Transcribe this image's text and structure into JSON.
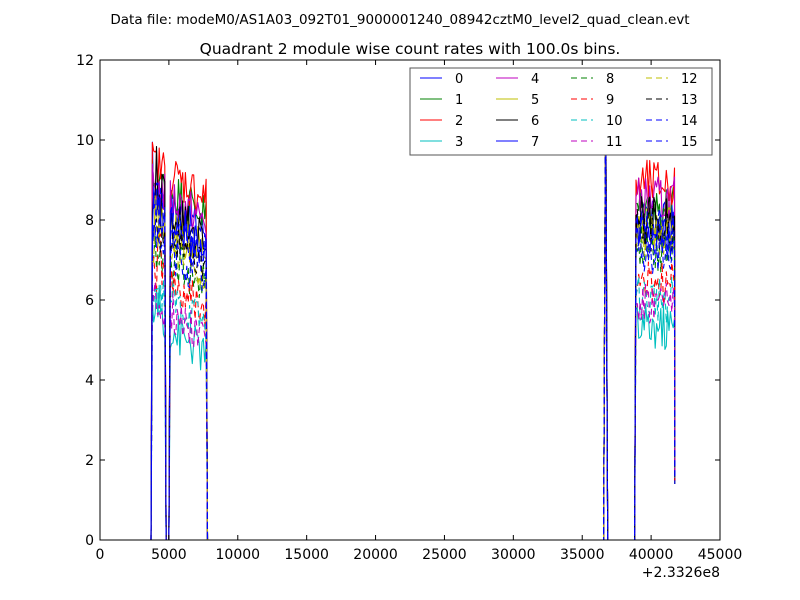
{
  "chart_data": {
    "type": "line",
    "suptitle": "Data file: modeM0/AS1A03_092T01_9000001240_08942cztM0_level2_quad_clean.evt",
    "title": "Quadrant 2 module wise count rates with 100.0s bins.",
    "xlabel": "",
    "ylabel": "",
    "x_offset_label": "+2.3326e8",
    "xlim": [
      0,
      45000
    ],
    "ylim": [
      0,
      12
    ],
    "xticks": [
      0,
      5000,
      10000,
      15000,
      20000,
      25000,
      30000,
      35000,
      40000,
      45000
    ],
    "yticks": [
      0,
      2,
      4,
      6,
      8,
      10,
      12
    ],
    "grid": false,
    "legend_position": "top-right",
    "legend_columns": 4,
    "segments": [
      {
        "x_start": 3800,
        "x_end": 7700,
        "dip_at": [
          4800,
          4950
        ]
      },
      {
        "x_start": 38900,
        "x_end": 41700,
        "dip_at": []
      }
    ],
    "spike_x": 36700,
    "series": [
      {
        "name": "0",
        "color": "#0000ff",
        "dash": "solid",
        "level1": 8.2,
        "level2": 7.9
      },
      {
        "name": "1",
        "color": "#008000",
        "dash": "solid",
        "level1": 8.6,
        "level2": 8.3
      },
      {
        "name": "2",
        "color": "#ff0000",
        "dash": "solid",
        "level1": 9.0,
        "level2": 8.9
      },
      {
        "name": "3",
        "color": "#00bfbf",
        "dash": "solid",
        "level1": 5.1,
        "level2": 5.3
      },
      {
        "name": "4",
        "color": "#bf00bf",
        "dash": "solid",
        "level1": 8.4,
        "level2": 8.5
      },
      {
        "name": "5",
        "color": "#bfbf00",
        "dash": "solid",
        "level1": 7.6,
        "level2": 7.8
      },
      {
        "name": "6",
        "color": "#000000",
        "dash": "solid",
        "level1": 8.0,
        "level2": 8.0
      },
      {
        "name": "7",
        "color": "#0000ff",
        "dash": "solid",
        "level1": 7.8,
        "level2": 7.5
      },
      {
        "name": "8",
        "color": "#008000",
        "dash": "dashed",
        "level1": 6.8,
        "level2": 7.3
      },
      {
        "name": "9",
        "color": "#ff0000",
        "dash": "dashed",
        "level1": 6.2,
        "level2": 6.4
      },
      {
        "name": "10",
        "color": "#00bfbf",
        "dash": "dashed",
        "level1": 5.8,
        "level2": 6.0
      },
      {
        "name": "11",
        "color": "#bf00bf",
        "dash": "dashed",
        "level1": 5.6,
        "level2": 5.9
      },
      {
        "name": "12",
        "color": "#bfbf00",
        "dash": "dashed",
        "level1": 7.2,
        "level2": 7.6
      },
      {
        "name": "13",
        "color": "#000000",
        "dash": "dashed",
        "level1": 7.4,
        "level2": 7.8
      },
      {
        "name": "14",
        "color": "#0000ff",
        "dash": "dashed",
        "level1": 7.0,
        "level2": 7.2
      },
      {
        "name": "15",
        "color": "#0000ff",
        "dash": "dashed",
        "level1": 7.6,
        "level2": 7.7
      }
    ]
  }
}
